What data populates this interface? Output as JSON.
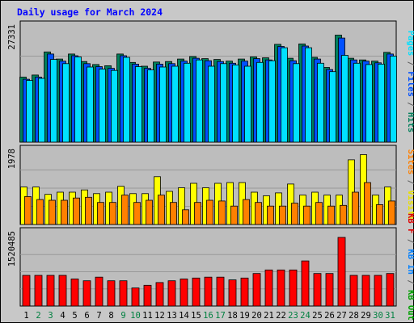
{
  "chart_data": {
    "type": "bar",
    "title": "Daily usage for March 2024",
    "categories": [
      "1",
      "2",
      "3",
      "4",
      "5",
      "6",
      "7",
      "8",
      "9",
      "10",
      "11",
      "12",
      "13",
      "14",
      "15",
      "16",
      "17",
      "18",
      "19",
      "20",
      "21",
      "22",
      "23",
      "24",
      "25",
      "26",
      "27",
      "28",
      "29",
      "30",
      "31"
    ],
    "weekend_days": [
      "2",
      "3",
      "9",
      "10",
      "16",
      "17",
      "23",
      "24",
      "30",
      "31"
    ],
    "panels": [
      {
        "name": "hits-files-pages",
        "max_label": "27331",
        "max": 27331,
        "legend": [
          {
            "text": "Pages",
            "color": "#00e0ff"
          },
          {
            "text": " / ",
            "color": "#606060"
          },
          {
            "text": "Files",
            "color": "#0050ff"
          },
          {
            "text": " / ",
            "color": "#606060"
          },
          {
            "text": "Hits",
            "color": "#00805c"
          }
        ],
        "series": [
          {
            "name": "Hits",
            "color": "#00805c",
            "values": [
              15500,
              16000,
              21500,
              19800,
              21000,
              19200,
              18500,
              18200,
              21000,
              19000,
              18100,
              19100,
              19200,
              19800,
              20400,
              19900,
              19700,
              19300,
              19800,
              20300,
              20100,
              23300,
              20000,
              23400,
              20200,
              17800,
              25500,
              20000,
              19600,
              19300,
              21400
            ]
          },
          {
            "name": "Files",
            "color": "#0050ff",
            "values": [
              15000,
              15500,
              21000,
              19300,
              20600,
              18700,
              18000,
              17600,
              20600,
              18600,
              17600,
              18600,
              18700,
              19300,
              20000,
              19400,
              19200,
              18800,
              19300,
              19900,
              19600,
              22800,
              19400,
              22900,
              19800,
              17300,
              24800,
              19600,
              19300,
              18900,
              21000
            ]
          },
          {
            "name": "Pages",
            "color": "#00e0ff",
            "values": [
              14700,
              15200,
              19700,
              18700,
              20300,
              17900,
              17400,
              17100,
              20200,
              18000,
              17200,
              17900,
              18100,
              18800,
              19600,
              18100,
              18700,
              18400,
              18100,
              19000,
              19400,
              22500,
              18700,
              22500,
              18800,
              16800,
              20700,
              18800,
              18500,
              18600,
              20500
            ]
          }
        ]
      },
      {
        "name": "visits-sites",
        "max_label": "1978",
        "max": 1978,
        "legend": [
          {
            "text": "Sites",
            "color": "#ff8000"
          },
          {
            "text": " / ",
            "color": "#606060"
          },
          {
            "text": "Visits",
            "color": "#e8e000"
          }
        ],
        "series": [
          {
            "name": "Visits",
            "color": "#ffff00",
            "values": [
              1020,
              1020,
              820,
              880,
              880,
              940,
              840,
              880,
              1040,
              840,
              840,
              1300,
              900,
              1000,
              1120,
              1000,
              1120,
              1140,
              1140,
              880,
              780,
              860,
              1100,
              800,
              880,
              800,
              800,
              1760,
              1900,
              800,
              1020
            ]
          },
          {
            "name": "Sites",
            "color": "#ff8000",
            "values": [
              760,
              680,
              660,
              660,
              720,
              740,
              600,
              600,
              800,
              600,
              660,
              800,
              600,
              400,
              600,
              660,
              640,
              500,
              680,
              600,
              500,
              500,
              580,
              500,
              600,
              500,
              520,
              880,
              1140,
              540,
              640
            ]
          }
        ]
      },
      {
        "name": "kbytes",
        "max_label": "1520485",
        "max": 1520485,
        "legend": [
          {
            "text": "KB F",
            "color": "#e00000"
          },
          {
            "text": " / ",
            "color": "#606060"
          },
          {
            "text": "KB In",
            "color": "#0080ff"
          },
          {
            "text": " / ",
            "color": "#606060"
          },
          {
            "text": "KB Out",
            "color": "#00a000"
          }
        ],
        "series": [
          {
            "name": "KB F",
            "color": "#ff0000",
            "values": [
              680000,
              680000,
              680000,
              680000,
              600000,
              560000,
              640000,
              560000,
              560000,
              400000,
              460000,
              520000,
              560000,
              600000,
              620000,
              640000,
              640000,
              580000,
              620000,
              720000,
              800000,
              800000,
              800000,
              1000000,
              720000,
              720000,
              1520485,
              680000,
              680000,
              680000,
              720000
            ]
          }
        ]
      }
    ]
  }
}
